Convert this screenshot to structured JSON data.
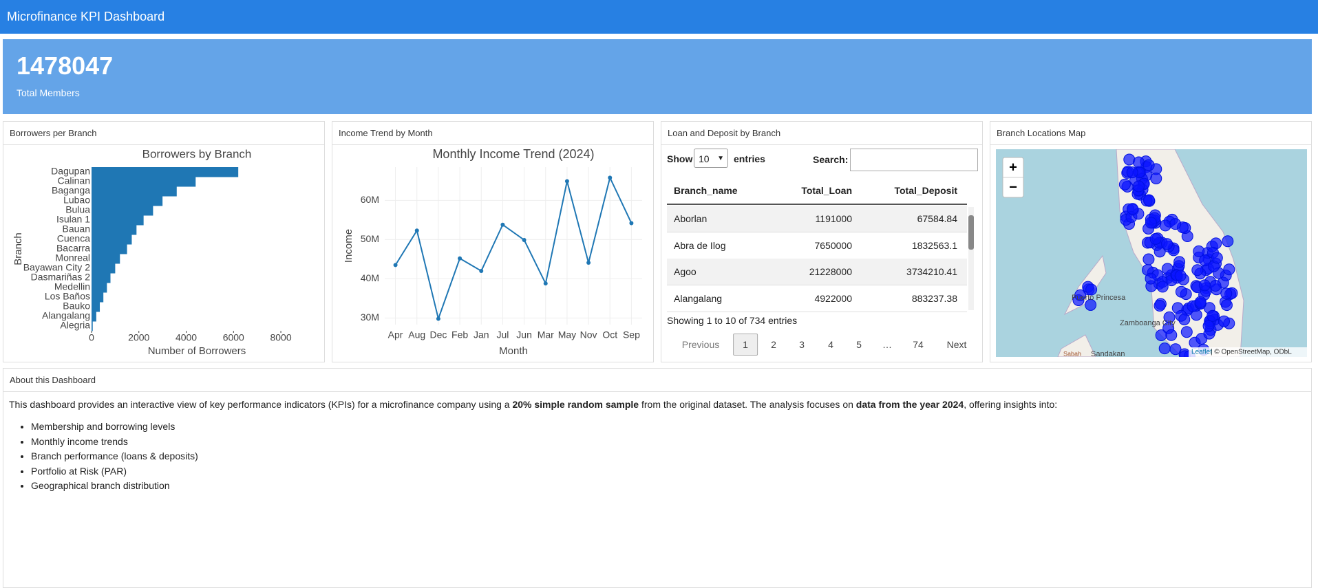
{
  "header": {
    "title": "Microfinance KPI Dashboard"
  },
  "kpi": {
    "value": 1478047,
    "label": "Total Members"
  },
  "panels": [
    "Borrowers per Branch",
    "Income Trend by Month",
    "Loan and Deposit by Branch",
    "Branch Locations Map",
    "About this Dashboard"
  ],
  "chart_data": [
    {
      "type": "bar",
      "orientation": "horizontal",
      "title": "Borrowers by Branch",
      "x_label": "Number of Borrowers",
      "y_label": "Branch",
      "categories": [
        "Dagupan",
        "Calinan",
        "Baganga",
        "Lubao",
        "Bulua",
        "Isulan 1",
        "Bauan",
        "Cuenca",
        "Bacarra",
        "Monreal",
        "Bayawan City 2",
        "Dasmariñas 2",
        "Medellin",
        "Los Baños",
        "Bauko",
        "Alangalang",
        "Alegria"
      ],
      "values": [
        6200,
        4400,
        3600,
        3000,
        2600,
        2200,
        1900,
        1700,
        1500,
        1200,
        1000,
        800,
        650,
        500,
        350,
        200,
        50
      ],
      "color": "#1f77b4",
      "xlim": [
        0,
        8900
      ],
      "xticks": [
        0,
        2000,
        4000,
        6000,
        8000
      ]
    },
    {
      "type": "line",
      "title": "Monthly Income Trend (2024)",
      "x_label": "Month",
      "y_label": "Income",
      "categories": [
        "Apr",
        "Aug",
        "Dec",
        "Feb",
        "Jan",
        "Jul",
        "Jun",
        "Mar",
        "May",
        "Nov",
        "Oct",
        "Sep"
      ],
      "values": [
        43500000,
        52300000,
        29800000,
        45200000,
        42000000,
        53800000,
        49900000,
        38800000,
        64900000,
        44100000,
        65800000,
        54200000
      ],
      "color": "#1f77b4",
      "ylim": [
        28300000,
        68500000
      ],
      "yticks": [
        {
          "value": 30000000,
          "label": "30M"
        },
        {
          "value": 40000000,
          "label": "40M"
        },
        {
          "value": 50000000,
          "label": "50M"
        },
        {
          "value": 60000000,
          "label": "60M"
        }
      ],
      "grid": true
    }
  ],
  "table": {
    "show_label": "Show",
    "length": 10,
    "entries_label": "entries",
    "search_label": "Search:",
    "columns": [
      "Branch_name",
      "Total_Loan",
      "Total_Deposit"
    ],
    "rows": [
      [
        "Aborlan",
        1191000,
        67584.84
      ],
      [
        "Abra de Ilog",
        7650000,
        1832563.1
      ],
      [
        "Agoo",
        21228000,
        3734210.41
      ],
      [
        "Alangalang",
        4922000,
        883237.38
      ]
    ],
    "info": "Showing 1 to 10 of 734 entries",
    "previous": "Previous",
    "pages": [
      1,
      2,
      3,
      4,
      5,
      "…",
      74
    ],
    "next": "Next"
  },
  "map": {
    "zoom_in": "+",
    "zoom_out": "−",
    "places": [
      "Puerto Princesa",
      "Zamboanga City",
      "Sabah",
      "Sandakan"
    ],
    "attribution_link": "Leaflet",
    "attribution": "| © OpenStreetMap, ODbL"
  },
  "about": {
    "intro": [
      "This dashboard provides an interactive view of key performance indicators (KPIs) for a microfinance company using a ",
      "20% simple random sample",
      " from the original dataset. The analysis focuses on ",
      "data from the year 2024",
      ", offering insights into:"
    ],
    "bullets": [
      "Membership and borrowing levels",
      "Monthly income trends",
      "Branch performance (loans & deposits)",
      "Portfolio at Risk (PAR)",
      "Geographical branch distribution"
    ]
  }
}
